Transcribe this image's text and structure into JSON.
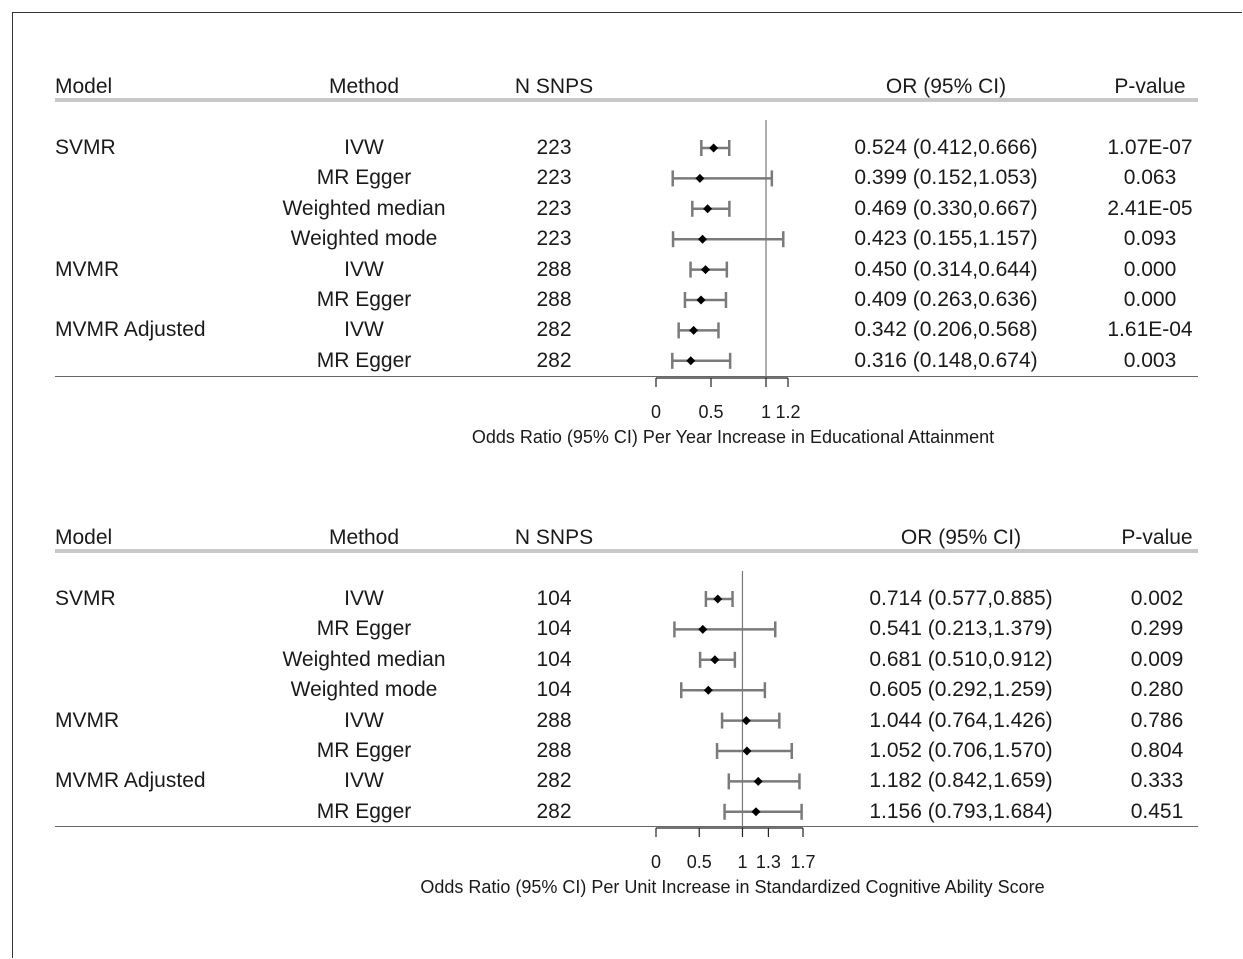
{
  "headers": {
    "model": "Model",
    "method": "Method",
    "nsnps": "N SNPS",
    "or": "OR (95% CI)",
    "pvalue": "P-value"
  },
  "chart_data": [
    {
      "type": "forest",
      "xlabel": "Odds Ratio (95% CI) Per Year Increase in Educational Attainment",
      "xticks": [
        0,
        0.5,
        1,
        1.2
      ],
      "xtick_labels": [
        "0",
        "0.5",
        "1",
        "1.2"
      ],
      "xlim": [
        0,
        1.2
      ],
      "reference_line": 1,
      "rows": [
        {
          "model": "SVMR",
          "method": "IVW",
          "nsnps": "223",
          "or": 0.524,
          "lo": 0.412,
          "hi": 0.666,
          "or_text": "0.524 (0.412,0.666)",
          "p": "1.07E-07"
        },
        {
          "model": "",
          "method": "MR Egger",
          "nsnps": "223",
          "or": 0.399,
          "lo": 0.152,
          "hi": 1.053,
          "or_text": "0.399 (0.152,1.053)",
          "p": "0.063"
        },
        {
          "model": "",
          "method": "Weighted median",
          "nsnps": "223",
          "or": 0.469,
          "lo": 0.33,
          "hi": 0.667,
          "or_text": "0.469 (0.330,0.667)",
          "p": "2.41E-05"
        },
        {
          "model": "",
          "method": "Weighted mode",
          "nsnps": "223",
          "or": 0.423,
          "lo": 0.155,
          "hi": 1.157,
          "or_text": "0.423 (0.155,1.157)",
          "p": "0.093"
        },
        {
          "model": "MVMR",
          "method": "IVW",
          "nsnps": "288",
          "or": 0.45,
          "lo": 0.314,
          "hi": 0.644,
          "or_text": "0.450 (0.314,0.644)",
          "p": "0.000"
        },
        {
          "model": "",
          "method": "MR Egger",
          "nsnps": "288",
          "or": 0.409,
          "lo": 0.263,
          "hi": 0.636,
          "or_text": "0.409 (0.263,0.636)",
          "p": "0.000"
        },
        {
          "model": "MVMR Adjusted",
          "method": "IVW",
          "nsnps": "282",
          "or": 0.342,
          "lo": 0.206,
          "hi": 0.568,
          "or_text": "0.342 (0.206,0.568)",
          "p": "1.61E-04"
        },
        {
          "model": "",
          "method": "MR Egger",
          "nsnps": "282",
          "or": 0.316,
          "lo": 0.148,
          "hi": 0.674,
          "or_text": "0.316 (0.148,0.674)",
          "p": "0.003"
        }
      ]
    },
    {
      "type": "forest",
      "xlabel": "Odds Ratio (95% CI) Per Unit Increase in Standardized Cognitive Ability Score",
      "xticks": [
        0,
        0.5,
        1,
        1.3,
        1.7
      ],
      "xtick_labels": [
        "0",
        "0.5",
        "1",
        "1.3",
        "1.7"
      ],
      "xlim": [
        0,
        1.7
      ],
      "reference_line": 1,
      "rows": [
        {
          "model": "SVMR",
          "method": "IVW",
          "nsnps": "104",
          "or": 0.714,
          "lo": 0.577,
          "hi": 0.885,
          "or_text": "0.714 (0.577,0.885)",
          "p": "0.002"
        },
        {
          "model": "",
          "method": "MR Egger",
          "nsnps": "104",
          "or": 0.541,
          "lo": 0.213,
          "hi": 1.379,
          "or_text": "0.541 (0.213,1.379)",
          "p": "0.299"
        },
        {
          "model": "",
          "method": "Weighted median",
          "nsnps": "104",
          "or": 0.681,
          "lo": 0.51,
          "hi": 0.912,
          "or_text": "0.681 (0.510,0.912)",
          "p": "0.009"
        },
        {
          "model": "",
          "method": "Weighted mode",
          "nsnps": "104",
          "or": 0.605,
          "lo": 0.292,
          "hi": 1.259,
          "or_text": "0.605 (0.292,1.259)",
          "p": "0.280"
        },
        {
          "model": "MVMR",
          "method": "IVW",
          "nsnps": "288",
          "or": 1.044,
          "lo": 0.764,
          "hi": 1.426,
          "or_text": "1.044 (0.764,1.426)",
          "p": "0.786"
        },
        {
          "model": "",
          "method": "MR Egger",
          "nsnps": "288",
          "or": 1.052,
          "lo": 0.706,
          "hi": 1.57,
          "or_text": "1.052 (0.706,1.570)",
          "p": "0.804"
        },
        {
          "model": "MVMR Adjusted",
          "method": "IVW",
          "nsnps": "282",
          "or": 1.182,
          "lo": 0.842,
          "hi": 1.659,
          "or_text": "1.182 (0.842,1.659)",
          "p": "0.333"
        },
        {
          "model": "",
          "method": "MR Egger",
          "nsnps": "282",
          "or": 1.156,
          "lo": 0.793,
          "hi": 1.684,
          "or_text": "1.156 (0.793,1.684)",
          "p": "0.451"
        }
      ]
    }
  ]
}
